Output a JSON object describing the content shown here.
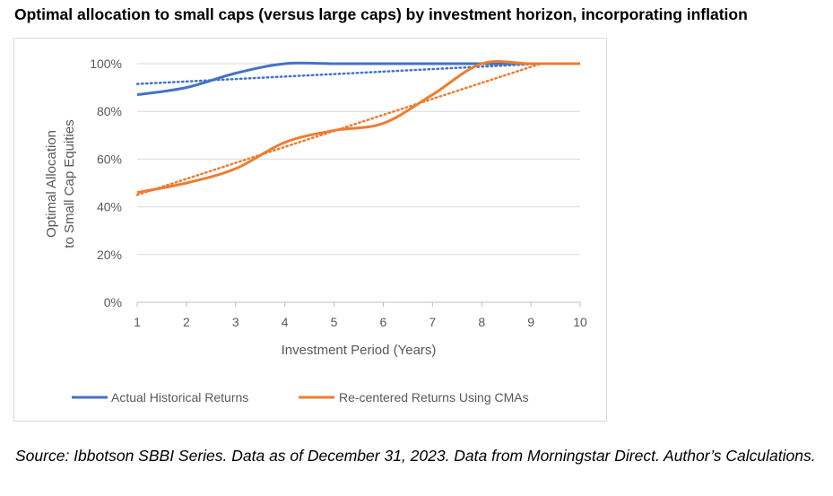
{
  "title": "Optimal allocation to small caps (versus large caps) by investment horizon, incorporating inflation",
  "source_note": "Source: Ibbotson SBBI Series.  Data as of December 31, 2023.  Data from Morningstar Direct. Author’s Calculations.",
  "chart_data": {
    "type": "line",
    "xlabel": "Investment Period (Years)",
    "ylabel_lines": [
      "Optimal Allocation",
      "to Small Cap Equities"
    ],
    "x": [
      1,
      2,
      3,
      4,
      5,
      6,
      7,
      8,
      9,
      10
    ],
    "x_tick_labels": [
      "1",
      "2",
      "3",
      "4",
      "5",
      "6",
      "7",
      "8",
      "9",
      "10"
    ],
    "xlim": [
      1,
      10
    ],
    "ylim": [
      0,
      100
    ],
    "y_ticks": [
      0,
      20,
      40,
      60,
      80,
      100
    ],
    "y_tick_labels": [
      "0%",
      "20%",
      "40%",
      "60%",
      "80%",
      "100%"
    ],
    "grid": "horizontal",
    "legend_position": "bottom",
    "series": [
      {
        "name": "Actual Historical Returns",
        "color": "#4472c4",
        "values": [
          87,
          90,
          96,
          100,
          100,
          100,
          100,
          100,
          100,
          100
        ],
        "trendline": {
          "x": [
            1,
            9.2
          ],
          "y": [
            91.5,
            100
          ]
        }
      },
      {
        "name": "Re-centered Returns Using CMAs",
        "color": "#ed7d31",
        "values": [
          46,
          50,
          56,
          67,
          72,
          75,
          87,
          100,
          100,
          100
        ],
        "trendline": {
          "x": [
            1,
            9.2
          ],
          "y": [
            45,
            100
          ]
        }
      }
    ]
  }
}
